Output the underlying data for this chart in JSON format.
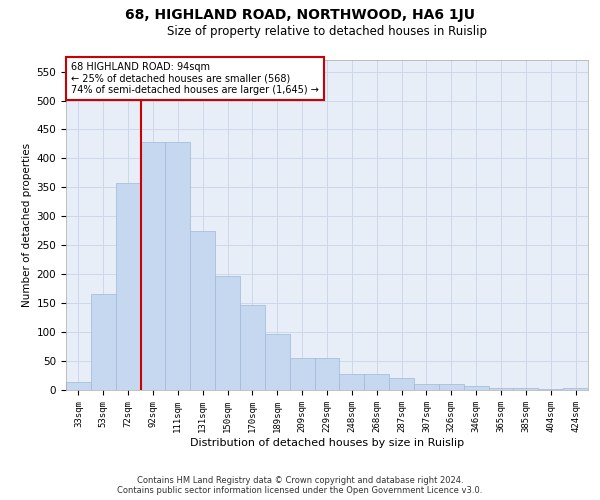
{
  "title": "68, HIGHLAND ROAD, NORTHWOOD, HA6 1JU",
  "subtitle": "Size of property relative to detached houses in Ruislip",
  "xlabel": "Distribution of detached houses by size in Ruislip",
  "ylabel": "Number of detached properties",
  "categories": [
    "33sqm",
    "53sqm",
    "72sqm",
    "92sqm",
    "111sqm",
    "131sqm",
    "150sqm",
    "170sqm",
    "189sqm",
    "209sqm",
    "229sqm",
    "248sqm",
    "268sqm",
    "287sqm",
    "307sqm",
    "326sqm",
    "346sqm",
    "365sqm",
    "385sqm",
    "404sqm",
    "424sqm"
  ],
  "values": [
    13,
    165,
    358,
    428,
    428,
    275,
    197,
    147,
    96,
    55,
    55,
    27,
    27,
    20,
    11,
    11,
    7,
    4,
    4,
    1,
    4
  ],
  "bar_color": "#c5d8f0",
  "bar_edge_color": "#a0b8d8",
  "annotation_text_line1": "68 HIGHLAND ROAD: 94sqm",
  "annotation_text_line2": "← 25% of detached houses are smaller (568)",
  "annotation_text_line3": "74% of semi-detached houses are larger (1,645) →",
  "annotation_box_color": "#ffffff",
  "annotation_box_edge_color": "#cc0000",
  "annotation_text_color": "#000000",
  "red_line_color": "#cc0000",
  "grid_color": "#cdd8ea",
  "background_color": "#e8eef8",
  "ylim": [
    0,
    570
  ],
  "yticks": [
    0,
    50,
    100,
    150,
    200,
    250,
    300,
    350,
    400,
    450,
    500,
    550
  ],
  "footer_line1": "Contains HM Land Registry data © Crown copyright and database right 2024.",
  "footer_line2": "Contains public sector information licensed under the Open Government Licence v3.0.",
  "red_line_bar_index": 3
}
